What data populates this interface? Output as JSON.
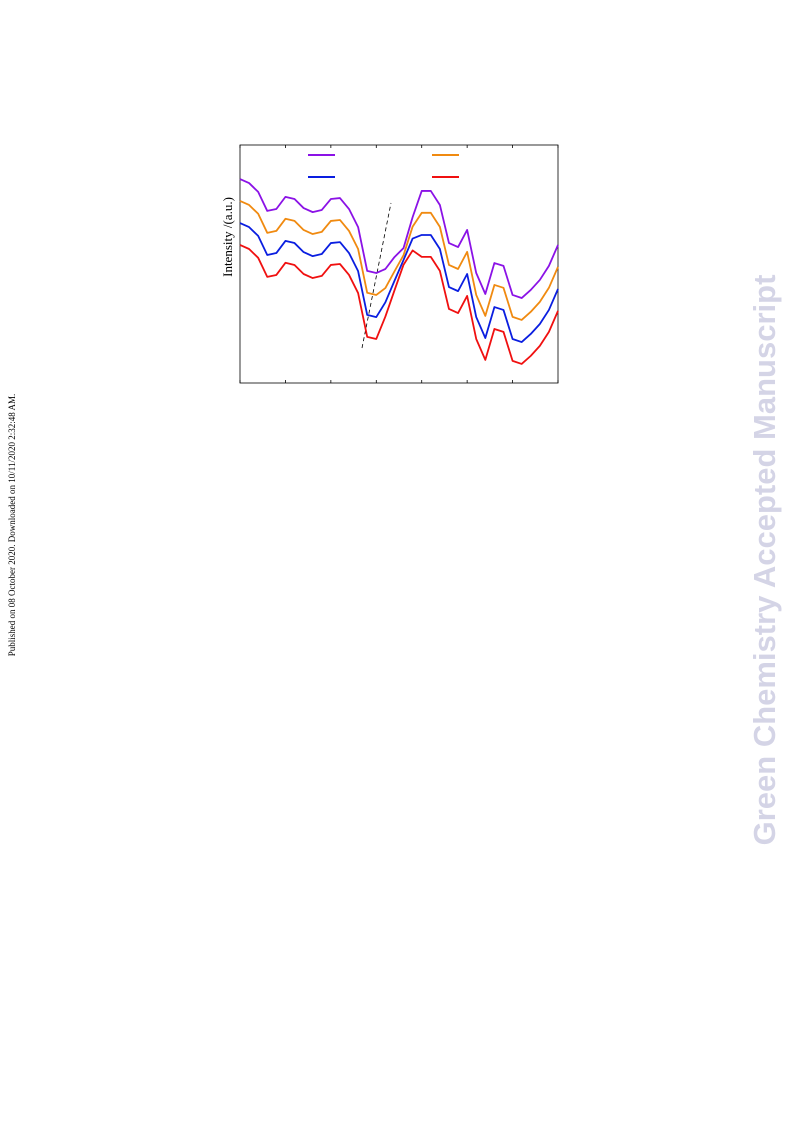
{
  "side_note": "Published on 08 October 2020. Downloaded on 10/11/2020 2:32:48 AM.",
  "watermark": "Green Chemistry Accepted Manuscript",
  "chart_data": {
    "type": "line",
    "y_label": "Intensity /(a.u.)",
    "x": [
      0,
      1,
      2,
      3,
      4,
      5,
      6,
      7,
      8,
      9,
      10,
      11,
      12,
      13,
      14,
      15,
      16,
      17,
      18,
      19,
      20,
      21,
      22,
      23,
      24,
      25,
      26,
      27,
      28,
      29,
      30,
      31,
      32,
      33,
      34,
      35
    ],
    "xlim": [
      0,
      35
    ],
    "xticks": [
      0,
      5,
      10,
      15,
      20,
      25,
      30,
      35
    ],
    "ylim": [
      0,
      100
    ],
    "series": [
      {
        "color": "#8b12e6",
        "values": [
          85.7,
          84.0,
          80.3,
          72.3,
          73.1,
          78.2,
          77.3,
          73.5,
          71.8,
          72.7,
          77.3,
          77.7,
          73.1,
          65.5,
          47.1,
          46.2,
          47.9,
          52.9,
          56.7,
          69.7,
          80.7,
          80.7,
          74.8,
          58.8,
          57.1,
          64.3,
          46.2,
          37.4,
          50.4,
          49.2,
          37.0,
          35.7,
          39.1,
          43.3,
          49.2,
          58.0
        ]
      },
      {
        "color": "#f08a10",
        "values": [
          76.5,
          74.8,
          71.1,
          63.1,
          63.9,
          69.0,
          68.1,
          64.3,
          62.6,
          63.5,
          68.1,
          68.5,
          63.9,
          56.3,
          37.9,
          37.0,
          39.9,
          46.9,
          53.7,
          65.7,
          71.5,
          71.5,
          65.6,
          49.6,
          47.9,
          55.1,
          37.0,
          28.2,
          41.2,
          40.0,
          27.8,
          26.5,
          29.9,
          34.1,
          40.0,
          48.8
        ]
      },
      {
        "color": "#0a1ee0",
        "values": [
          67.2,
          65.5,
          61.8,
          53.8,
          54.6,
          59.7,
          58.8,
          55.0,
          53.3,
          54.2,
          58.8,
          59.2,
          54.6,
          47.0,
          28.6,
          27.7,
          33.9,
          42.9,
          51.7,
          60.7,
          62.2,
          62.2,
          56.3,
          40.3,
          38.6,
          45.8,
          27.7,
          18.9,
          31.9,
          30.7,
          18.5,
          17.2,
          20.6,
          24.8,
          30.7,
          39.5
        ]
      },
      {
        "color": "#f01010",
        "values": [
          58.0,
          56.3,
          52.6,
          44.6,
          45.4,
          50.5,
          49.6,
          45.8,
          44.1,
          45.0,
          49.6,
          50.0,
          45.4,
          37.8,
          19.4,
          18.5,
          27.9,
          38.9,
          49.7,
          55.7,
          53.0,
          53.0,
          47.1,
          31.1,
          29.4,
          36.6,
          18.5,
          9.7,
          22.7,
          21.5,
          9.3,
          8.0,
          11.4,
          15.6,
          21.5,
          30.3
        ]
      }
    ]
  }
}
